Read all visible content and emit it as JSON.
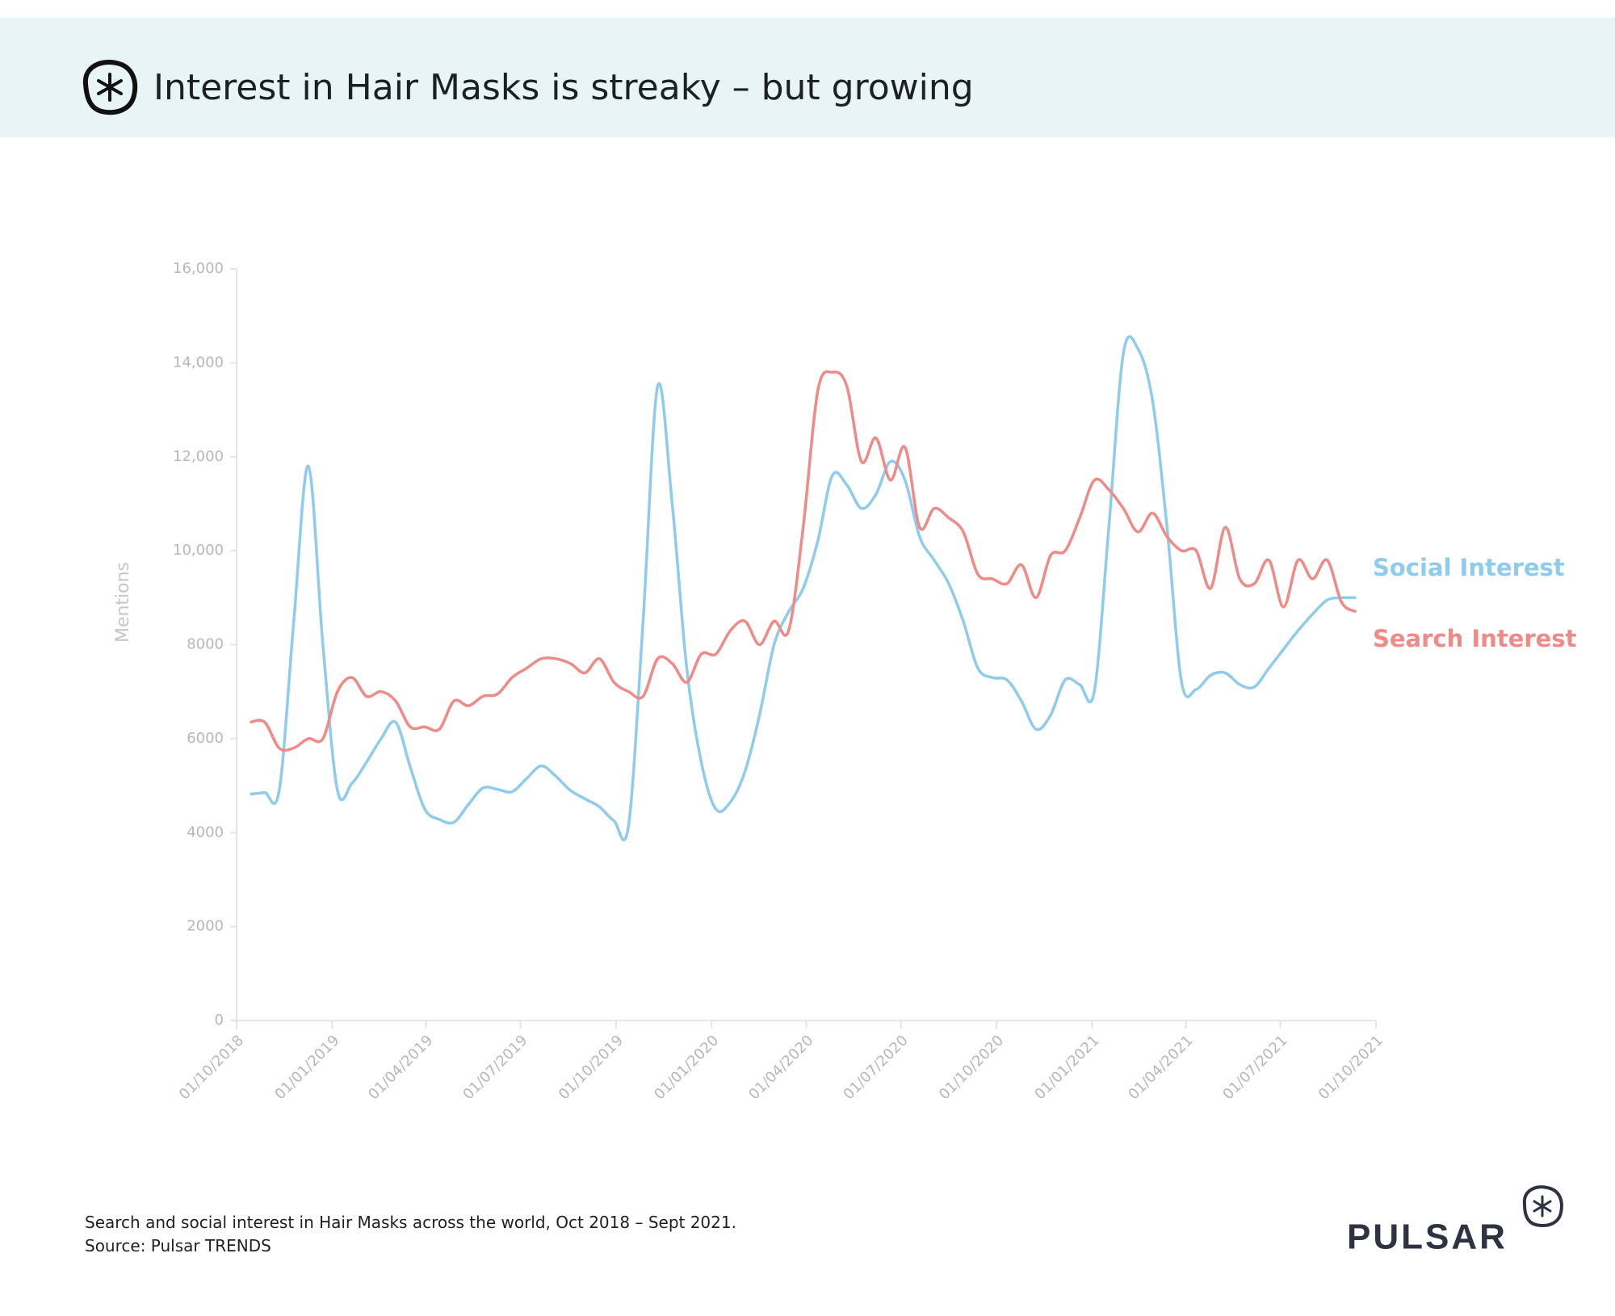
{
  "chart_data": {
    "type": "line",
    "title": "Interest in Hair Masks is streaky – but growing",
    "y_label": "Mentions",
    "caption": "Search and social interest in Hair Masks across the world, Oct 2018 – Sept 2021.",
    "source": "Source: Pulsar TRENDS",
    "brand": "PULSAR",
    "legend": "right",
    "grid": false,
    "xlim": [
      "2018-10-01",
      "2021-10-01"
    ],
    "xticks": [
      {
        "value": "2018-10-01",
        "label": "01/10/2018"
      },
      {
        "value": "2019-01-01",
        "label": "01/01/2019"
      },
      {
        "value": "2019-04-01",
        "label": "01/04/2019"
      },
      {
        "value": "2019-07-01",
        "label": "01/07/2019"
      },
      {
        "value": "2019-10-01",
        "label": "01/10/2019"
      },
      {
        "value": "2020-01-01",
        "label": "01/01/2020"
      },
      {
        "value": "2020-04-01",
        "label": "01/04/2020"
      },
      {
        "value": "2020-07-01",
        "label": "01/07/2020"
      },
      {
        "value": "2020-10-01",
        "label": "01/10/2020"
      },
      {
        "value": "2021-01-01",
        "label": "01/01/2021"
      },
      {
        "value": "2021-04-01",
        "label": "01/04/2021"
      },
      {
        "value": "2021-07-01",
        "label": "01/07/2021"
      },
      {
        "value": "2021-10-01",
        "label": "01/10/2021"
      }
    ],
    "ylim": [
      0,
      16000
    ],
    "yticks": [
      0,
      2000,
      4000,
      6000,
      8000,
      {
        "value": 10000,
        "label": "10,000"
      },
      {
        "value": 12000,
        "label": "12,000"
      },
      {
        "value": 14000,
        "label": "14,000"
      },
      {
        "value": 16000,
        "label": "16,000"
      }
    ],
    "x": [
      "2018-10-14",
      "2018-10-28",
      "2018-11-11",
      "2018-11-25",
      "2018-12-09",
      "2018-12-23",
      "2019-01-06",
      "2019-01-20",
      "2019-02-03",
      "2019-02-17",
      "2019-03-03",
      "2019-03-17",
      "2019-03-31",
      "2019-04-14",
      "2019-04-28",
      "2019-05-12",
      "2019-05-26",
      "2019-06-09",
      "2019-06-23",
      "2019-07-07",
      "2019-07-21",
      "2019-08-04",
      "2019-08-18",
      "2019-09-01",
      "2019-09-15",
      "2019-09-29",
      "2019-10-13",
      "2019-10-27",
      "2019-11-10",
      "2019-11-24",
      "2019-12-08",
      "2019-12-22",
      "2020-01-05",
      "2020-01-19",
      "2020-02-02",
      "2020-02-16",
      "2020-03-01",
      "2020-03-15",
      "2020-03-29",
      "2020-04-12",
      "2020-04-26",
      "2020-05-10",
      "2020-05-24",
      "2020-06-07",
      "2020-06-21",
      "2020-07-05",
      "2020-07-19",
      "2020-08-02",
      "2020-08-16",
      "2020-08-30",
      "2020-09-13",
      "2020-09-27",
      "2020-10-11",
      "2020-10-25",
      "2020-11-08",
      "2020-11-22",
      "2020-12-06",
      "2020-12-20",
      "2021-01-03",
      "2021-01-17",
      "2021-01-31",
      "2021-02-14",
      "2021-02-28",
      "2021-03-14",
      "2021-03-28",
      "2021-04-11",
      "2021-04-25",
      "2021-05-09",
      "2021-05-23",
      "2021-06-06",
      "2021-06-20",
      "2021-07-04",
      "2021-07-18",
      "2021-08-01",
      "2021-08-15",
      "2021-08-29",
      "2021-09-12"
    ],
    "series": [
      {
        "name": "Social Interest",
        "color": "#8ecbed",
        "values": [
          4820,
          4850,
          4900,
          8500,
          11800,
          8000,
          4900,
          5050,
          5500,
          6000,
          6350,
          5400,
          4500,
          4280,
          4220,
          4600,
          4950,
          4920,
          4870,
          5150,
          5420,
          5200,
          4900,
          4720,
          4550,
          4250,
          4150,
          8500,
          13500,
          11000,
          7500,
          5500,
          4500,
          4650,
          5300,
          6500,
          8000,
          8700,
          9200,
          10200,
          11600,
          11400,
          10900,
          11200,
          11900,
          11500,
          10300,
          9800,
          9300,
          8500,
          7500,
          7300,
          7250,
          6800,
          6200,
          6500,
          7250,
          7150,
          7000,
          10500,
          14200,
          14300,
          13200,
          10500,
          7200,
          7050,
          7350,
          7400,
          7150,
          7100,
          7500,
          7900,
          8300,
          8650,
          8950,
          9000,
          9000
        ]
      },
      {
        "name": "Search Interest",
        "color": "#ef8a86",
        "values": [
          6350,
          6350,
          5800,
          5800,
          6000,
          6000,
          7000,
          7300,
          6900,
          7000,
          6800,
          6250,
          6250,
          6200,
          6800,
          6700,
          6900,
          6950,
          7300,
          7500,
          7700,
          7700,
          7600,
          7400,
          7700,
          7200,
          7000,
          6900,
          7700,
          7600,
          7200,
          7800,
          7800,
          8300,
          8500,
          8000,
          8500,
          8300,
          10500,
          13400,
          13800,
          13500,
          11900,
          12400,
          11500,
          12200,
          10500,
          10900,
          10700,
          10400,
          9500,
          9400,
          9300,
          9700,
          9000,
          9900,
          10000,
          10700,
          11500,
          11300,
          10900,
          10400,
          10800,
          10300,
          10000,
          10000,
          9200,
          10500,
          9400,
          9300,
          9800,
          8800,
          9800,
          9400,
          9800,
          8900,
          8700
        ]
      }
    ]
  }
}
